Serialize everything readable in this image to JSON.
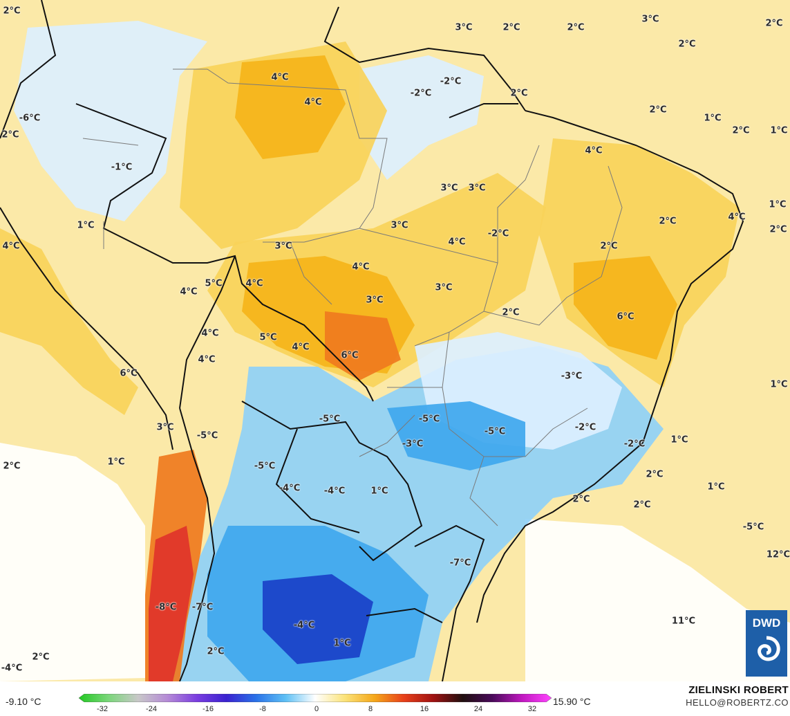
{
  "map": {
    "colors": {
      "warm_light": "#fbe9a8",
      "warm_mid": "#f8d35a",
      "warm_strong": "#f5b41a",
      "warm_hot": "#ef7a1e",
      "hot_red": "#e0342a",
      "cold_light": "#dcefff",
      "cold_mid": "#8fd0f7",
      "cold_strong": "#3fa7ee",
      "cold_deep": "#2260d8",
      "cold_deepest": "#1a40c8",
      "border": "#111111",
      "state_border": "#7a7a7a"
    },
    "labels": [
      {
        "text": "2°C"
      },
      {
        "text": "3°C"
      },
      {
        "text": "2°C"
      },
      {
        "text": "2°C"
      },
      {
        "text": "3°C"
      },
      {
        "text": "2°C"
      },
      {
        "text": "2°C"
      },
      {
        "text": "4°C"
      },
      {
        "text": "4°C"
      },
      {
        "text": "-2°C"
      },
      {
        "text": "-2°C"
      },
      {
        "text": "2°C"
      },
      {
        "text": "2°C"
      },
      {
        "text": "1°C"
      },
      {
        "text": "2°C"
      },
      {
        "text": "1°C"
      },
      {
        "text": "-6°C"
      },
      {
        "text": "2°C"
      },
      {
        "text": "-1°C"
      },
      {
        "text": "4°C"
      },
      {
        "text": "3°C"
      },
      {
        "text": "3°C"
      },
      {
        "text": "1°C"
      },
      {
        "text": "3°C"
      },
      {
        "text": "2°C"
      },
      {
        "text": "4°C"
      },
      {
        "text": "1°C"
      },
      {
        "text": "3°C"
      },
      {
        "text": "2°C"
      },
      {
        "text": "4°C"
      },
      {
        "text": "-2°C"
      },
      {
        "text": "2°C"
      },
      {
        "text": "4°C"
      },
      {
        "text": "4°C"
      },
      {
        "text": "4°C"
      },
      {
        "text": "5°C"
      },
      {
        "text": "4°C"
      },
      {
        "text": "3°C"
      },
      {
        "text": "3°C"
      },
      {
        "text": "2°C"
      },
      {
        "text": "6°C"
      },
      {
        "text": "5°C"
      },
      {
        "text": "4°C"
      },
      {
        "text": "6°C"
      },
      {
        "text": "4°C"
      },
      {
        "text": "4°C"
      },
      {
        "text": "1°C"
      },
      {
        "text": "-3°C"
      },
      {
        "text": "6°C"
      },
      {
        "text": "3°C"
      },
      {
        "text": "-5°C"
      },
      {
        "text": "-5°C"
      },
      {
        "text": "-3°C"
      },
      {
        "text": "-5°C"
      },
      {
        "text": "-2°C"
      },
      {
        "text": "-2°C"
      },
      {
        "text": "1°C"
      },
      {
        "text": "2°C"
      },
      {
        "text": "1°C"
      },
      {
        "text": "-5°C"
      },
      {
        "text": "-5°C"
      },
      {
        "text": "-4°C"
      },
      {
        "text": "-4°C"
      },
      {
        "text": "1°C"
      },
      {
        "text": "2°C"
      },
      {
        "text": "1°C"
      },
      {
        "text": "2°C"
      },
      {
        "text": "2°C"
      },
      {
        "text": "-5°C"
      },
      {
        "text": "12°C"
      },
      {
        "text": "-7°C"
      },
      {
        "text": "-8°C"
      },
      {
        "text": "-7°C"
      },
      {
        "text": "-4°C"
      },
      {
        "text": "1°C"
      },
      {
        "text": "2°C"
      },
      {
        "text": "11°C"
      },
      {
        "text": "2°C"
      },
      {
        "text": "-4°C"
      }
    ]
  },
  "legend": {
    "min_label": "-9.10 °C",
    "max_label": "15.90 °C",
    "ticks": [
      "-32",
      "-24",
      "-16",
      "-8",
      "0",
      "8",
      "16",
      "24",
      "32"
    ],
    "gradient_colors": [
      "#22c822",
      "#7ad67a",
      "#c8c8c8",
      "#b58ad6",
      "#7a3de0",
      "#3a22d0",
      "#2a72e8",
      "#5ec0f5",
      "#ffffff",
      "#fbe37a",
      "#f5a81a",
      "#e8401a",
      "#a01212",
      "#201010",
      "#4a0a5a",
      "#c018c0",
      "#ff44ff"
    ]
  },
  "credits": {
    "author": "ZIELINSKI ROBERT",
    "email": "HELLO@ROBERTZ.CO",
    "logo_text": "DWD"
  }
}
